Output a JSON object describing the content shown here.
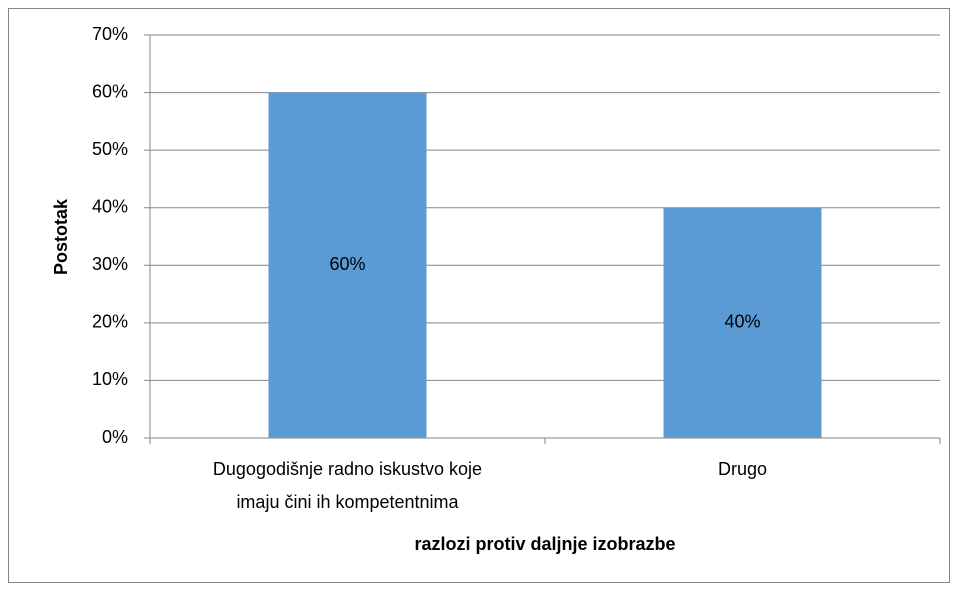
{
  "chart_data": {
    "type": "bar",
    "categories": [
      "Dugogodišnje radno iskustvo koje\nimaju čini ih kompetentnima",
      "Drugo"
    ],
    "values": [
      60,
      40
    ],
    "value_labels": [
      "60%",
      "40%"
    ],
    "color": "#5b9bd5",
    "y_label": "Postotak",
    "x_label": "razlozi protiv daljnje izobrazbe",
    "ylim": [
      0,
      70
    ],
    "yticks": [
      {
        "value": 0,
        "label": "0%"
      },
      {
        "value": 10,
        "label": "10%"
      },
      {
        "value": 20,
        "label": "20%"
      },
      {
        "value": 30,
        "label": "30%"
      },
      {
        "value": 40,
        "label": "40%"
      },
      {
        "value": 50,
        "label": "50%"
      },
      {
        "value": 60,
        "label": "60%"
      },
      {
        "value": 70,
        "label": "70%"
      }
    ],
    "grid": true
  }
}
